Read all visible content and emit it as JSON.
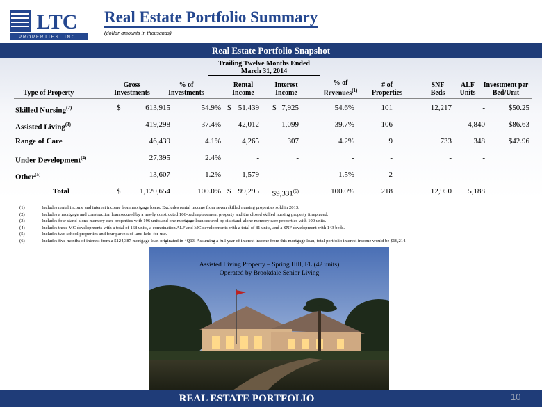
{
  "header": {
    "title": "Real Estate Portfolio Summary",
    "subtitle": "(dollar amounts in thousands)",
    "logo": {
      "name": "LTC",
      "tagline": "PROPERTIES, INC."
    }
  },
  "section_title": "Real Estate Portfolio Snapshot",
  "table": {
    "group_header": "Trailing Twelve Months Ended March 31, 2014",
    "columns": [
      {
        "text": "Type of Property"
      },
      {
        "text": "Gross Investments"
      },
      {
        "text": "% of Investments"
      },
      {
        "text": "Rental Income"
      },
      {
        "text": "Interest Income"
      },
      {
        "text": "% of Revenues",
        "note": "(1)"
      },
      {
        "text": "# of Properties"
      },
      {
        "text": "SNF Beds"
      },
      {
        "text": "ALF Units"
      },
      {
        "text": "Investment per Bed/Unit"
      }
    ],
    "rows": [
      {
        "label": "Skilled Nursing",
        "note": "(2)",
        "cells": [
          {
            "prefix": "$",
            "text": "613,915"
          },
          "54.9%",
          {
            "prefix": "$",
            "text": "51,439"
          },
          {
            "prefix": "$",
            "text": "7,925"
          },
          "54.6%",
          "101",
          "12,217",
          "-",
          "$50.25"
        ]
      },
      {
        "label": "Assisted Living",
        "note": "(3)",
        "cells": [
          "419,298",
          "37.4%",
          "42,012",
          "1,099",
          "39.7%",
          "106",
          "-",
          "4,840",
          "$86.63"
        ]
      },
      {
        "label": "Range of Care",
        "cells": [
          "46,439",
          "4.1%",
          "4,265",
          "307",
          "4.2%",
          "9",
          "733",
          "348",
          "$42.96"
        ]
      },
      {
        "label": "Under Development",
        "note": "(4)",
        "cells": [
          "27,395",
          "2.4%",
          "-",
          "-",
          "-",
          "-",
          "-",
          "-"
        ]
      },
      {
        "label": "Other",
        "note": "(5)",
        "cells": [
          "13,607",
          "1.2%",
          "1,579",
          "-",
          "1.5%",
          "2",
          "-",
          "-"
        ]
      },
      {
        "label": "Total",
        "cells": [
          {
            "prefix": "$",
            "text": "1,120,654"
          },
          "100.0%",
          {
            "prefix": "$",
            "text": "99,295"
          },
          {
            "text": "$9,331",
            "note": "(6)"
          },
          "100.0%",
          "218",
          "12,950",
          "5,188"
        ]
      }
    ]
  },
  "footnotes": [
    {
      "number": "(1)",
      "text": "Includes rental income and interest income from mortgage loans.  Excludes rental income from seven skilled nursing properties sold in 2013."
    },
    {
      "number": "(2)",
      "text": "Includes a mortgage and construction loan secured by a newly constructed 106-bed replacement property and the closed skilled nursing property it replaced."
    },
    {
      "number": "(3)",
      "text": "Includes four stand-alone memory care properties with 196 units and one mortgage loan secured by six stand-alone memory care properties with 100 units."
    },
    {
      "number": "(4)",
      "text": "Includes three MC developments with a total of 168 units, a combination ALF and MC developments with a total of 81 units, and a SNF development with 143 beds."
    },
    {
      "number": "(5)",
      "text": "Includes two school properties and four parcels of land held-for-use."
    },
    {
      "number": "(6)",
      "text": "Includes five months of interest from a $124,387 mortgage loan originated in 4Q13.  Assuming a full year of interest income from this mortgage loan, total portfolio interest income would be $16,214."
    }
  ],
  "photo": {
    "caption": [
      "Assisted Living Property – Spring Hill, FL (42 units)",
      "Operated by Brookdale Senior Living"
    ]
  },
  "footer": {
    "text": "REAL ESTATE PORTFOLIO",
    "page_number": "10"
  }
}
